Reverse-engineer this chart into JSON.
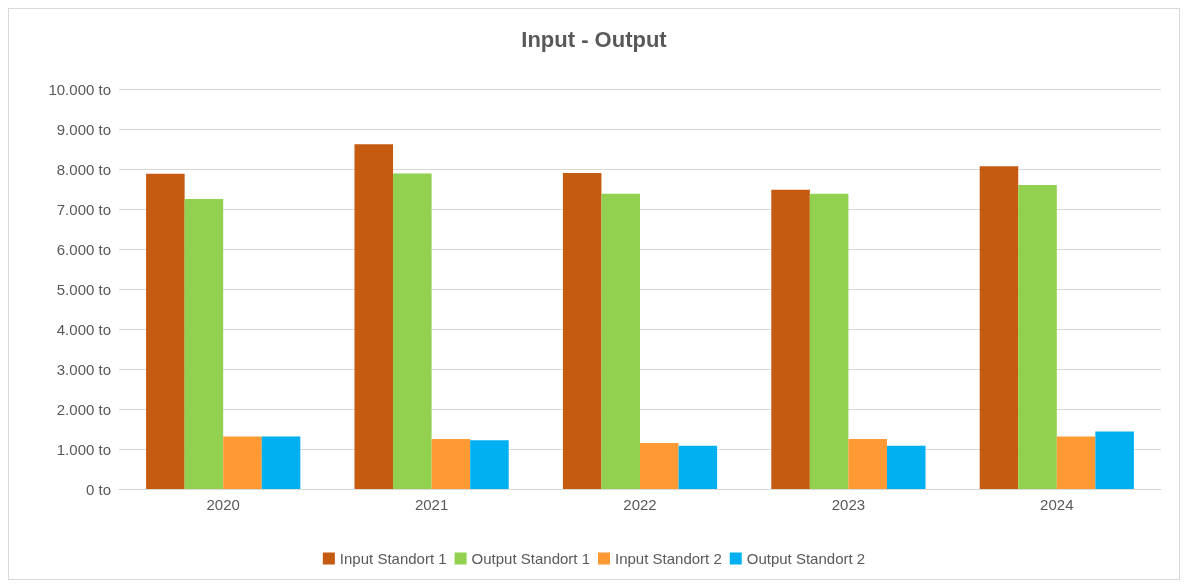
{
  "chart_data": {
    "type": "bar",
    "title": "Input - Output",
    "categories": [
      "2020",
      "2021",
      "2022",
      "2023",
      "2024"
    ],
    "series": [
      {
        "name": "Input Standort 1",
        "color": "#c55a11",
        "values": [
          7880,
          8620,
          7900,
          7480,
          8070
        ]
      },
      {
        "name": "Output Standort 1",
        "color": "#92d050",
        "values": [
          7250,
          7890,
          7380,
          7380,
          7600
        ]
      },
      {
        "name": "Input Standort 2",
        "color": "#ff9933",
        "values": [
          1310,
          1250,
          1150,
          1250,
          1310
        ]
      },
      {
        "name": "Output Standort 2",
        "color": "#00b0f0",
        "values": [
          1310,
          1220,
          1080,
          1080,
          1440
        ]
      }
    ],
    "ylim": [
      0,
      10000
    ],
    "yticks": [
      {
        "value": 0,
        "label": "0 to"
      },
      {
        "value": 1000,
        "label": "1.000 to"
      },
      {
        "value": 2000,
        "label": "2.000 to"
      },
      {
        "value": 3000,
        "label": "3.000 to"
      },
      {
        "value": 4000,
        "label": "4.000 to"
      },
      {
        "value": 5000,
        "label": "5.000 to"
      },
      {
        "value": 6000,
        "label": "6.000 to"
      },
      {
        "value": 7000,
        "label": "7.000 to"
      },
      {
        "value": 8000,
        "label": "8.000 to"
      },
      {
        "value": 9000,
        "label": "9.000 to"
      },
      {
        "value": 10000,
        "label": "10.000 to"
      }
    ],
    "grid": "y",
    "legend": "bottom"
  }
}
